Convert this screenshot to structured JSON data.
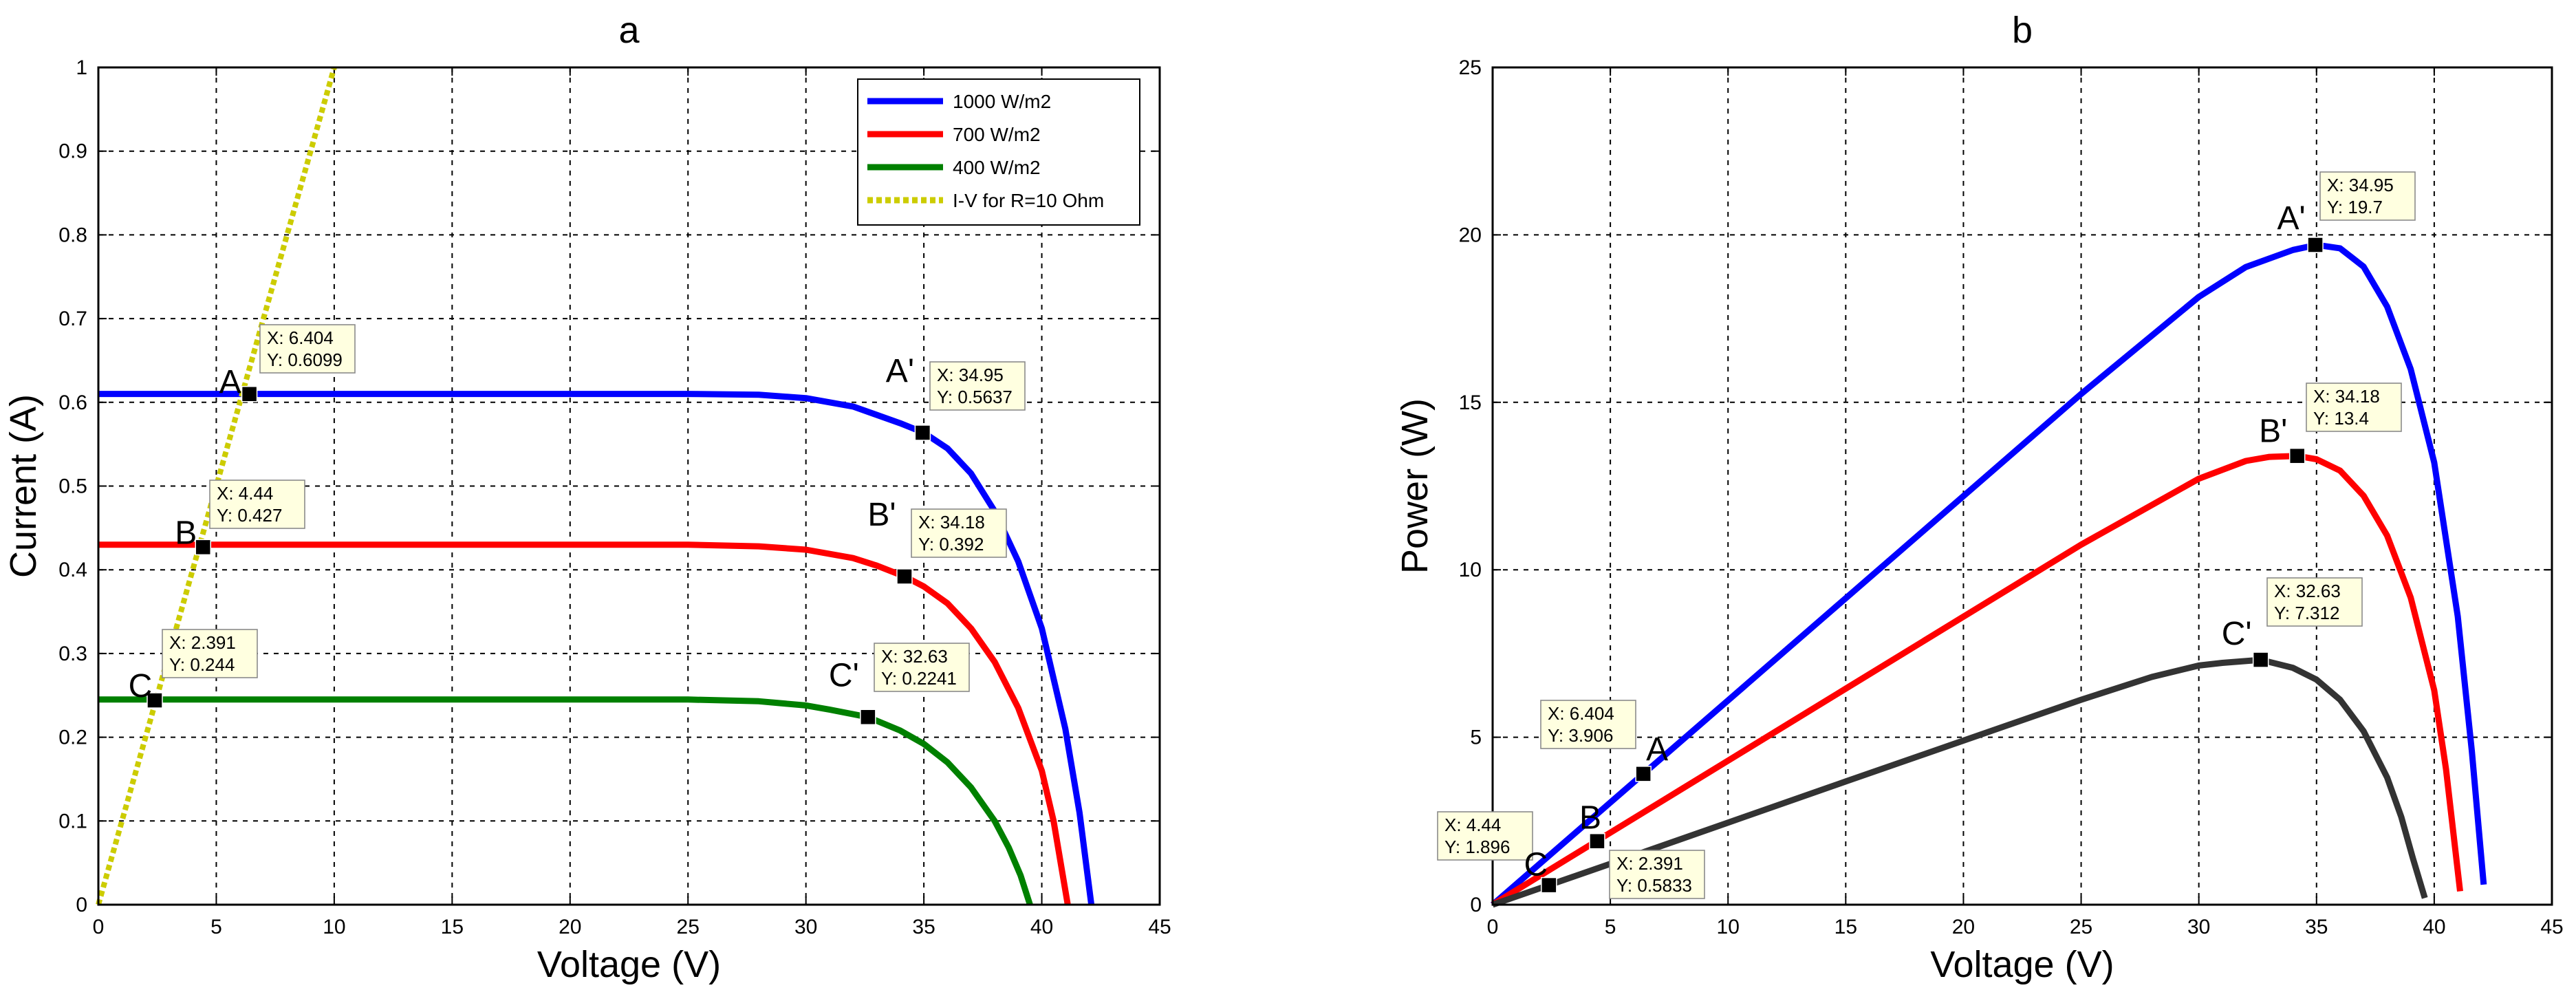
{
  "chart_data": [
    {
      "id": "a",
      "type": "line",
      "title": "a",
      "xlabel": "Voltage (V)",
      "ylabel": "Current (A)",
      "xlim": [
        0,
        45
      ],
      "ylim": [
        0,
        1
      ],
      "xticks": [
        "0",
        "5",
        "10",
        "15",
        "20",
        "25",
        "30",
        "35",
        "40",
        "45"
      ],
      "yticks": [
        "0",
        "0.1",
        "0.2",
        "0.3",
        "0.4",
        "0.5",
        "0.6",
        "0.7",
        "0.8",
        "0.9",
        "1"
      ],
      "grid": true,
      "legend_position": "top-right",
      "series": [
        {
          "name": "1000 W/m2",
          "color": "#0000ff",
          "style": "solid",
          "x": [
            0,
            5,
            10,
            15,
            20,
            25,
            28,
            30,
            32,
            34,
            35,
            36,
            37,
            38,
            39,
            40,
            41,
            41.6,
            42.1
          ],
          "y": [
            0.61,
            0.61,
            0.61,
            0.61,
            0.61,
            0.61,
            0.609,
            0.605,
            0.595,
            0.575,
            0.5637,
            0.545,
            0.515,
            0.47,
            0.41,
            0.33,
            0.21,
            0.11,
            0
          ]
        },
        {
          "name": "700 W/m2",
          "color": "#ff0000",
          "style": "solid",
          "x": [
            0,
            5,
            10,
            15,
            20,
            25,
            28,
            30,
            32,
            33,
            34.18,
            35,
            36,
            37,
            38,
            39,
            40,
            40.5,
            41.1
          ],
          "y": [
            0.43,
            0.43,
            0.43,
            0.43,
            0.43,
            0.43,
            0.428,
            0.424,
            0.414,
            0.405,
            0.392,
            0.38,
            0.36,
            0.33,
            0.29,
            0.235,
            0.16,
            0.1,
            0
          ]
        },
        {
          "name": "400 W/m2",
          "color": "#008000",
          "style": "solid",
          "x": [
            0,
            5,
            10,
            15,
            20,
            25,
            28,
            30,
            31,
            32.63,
            34,
            35,
            36,
            37,
            38,
            38.6,
            39.1,
            39.5
          ],
          "y": [
            0.245,
            0.245,
            0.245,
            0.245,
            0.245,
            0.245,
            0.243,
            0.238,
            0.233,
            0.2241,
            0.208,
            0.192,
            0.17,
            0.14,
            0.1,
            0.068,
            0.035,
            0
          ]
        },
        {
          "name": "I-V for R=10 Ohm",
          "color": "#cccc00",
          "style": "dotted",
          "x": [
            0,
            10
          ],
          "y": [
            0,
            1
          ]
        }
      ],
      "points": [
        {
          "label": "A",
          "x": 6.404,
          "y": 0.6099,
          "tip_x": "X: 6.404",
          "tip_y": "Y: 0.6099"
        },
        {
          "label": "B",
          "x": 4.44,
          "y": 0.427,
          "tip_x": "X: 4.44",
          "tip_y": "Y: 0.427"
        },
        {
          "label": "C",
          "x": 2.391,
          "y": 0.244,
          "tip_x": "X: 2.391",
          "tip_y": "Y: 0.244"
        },
        {
          "label": "A'",
          "x": 34.95,
          "y": 0.5637,
          "tip_x": "X: 34.95",
          "tip_y": "Y: 0.5637"
        },
        {
          "label": "B'",
          "x": 34.18,
          "y": 0.392,
          "tip_x": "X: 34.18",
          "tip_y": "Y: 0.392"
        },
        {
          "label": "C'",
          "x": 32.63,
          "y": 0.2241,
          "tip_x": "X: 32.63",
          "tip_y": "Y: 0.2241"
        }
      ]
    },
    {
      "id": "b",
      "type": "line",
      "title": "b",
      "xlabel": "Voltage (V)",
      "ylabel": "Power (W)",
      "xlim": [
        0,
        45
      ],
      "ylim": [
        0,
        25
      ],
      "xticks": [
        "0",
        "5",
        "10",
        "15",
        "20",
        "25",
        "30",
        "35",
        "40",
        "45"
      ],
      "yticks": [
        "0",
        "5",
        "10",
        "15",
        "20",
        "25"
      ],
      "grid": true,
      "series": [
        {
          "name": "1000 W/m2",
          "color": "#0000ff",
          "style": "solid",
          "x": [
            0,
            5,
            10,
            15,
            20,
            25,
            30,
            32,
            34,
            35,
            36,
            37,
            38,
            39,
            40,
            41,
            41.6,
            42.1
          ],
          "y": [
            0,
            3.05,
            6.1,
            9.15,
            12.2,
            15.25,
            18.15,
            19.04,
            19.55,
            19.7,
            19.6,
            19.05,
            17.86,
            15.99,
            13.2,
            8.61,
            4.58,
            0.6
          ]
        },
        {
          "name": "700 W/m2",
          "color": "#ff0000",
          "style": "solid",
          "x": [
            0,
            5,
            10,
            15,
            20,
            25,
            30,
            32,
            33,
            34.18,
            35,
            36,
            37,
            38,
            39,
            40,
            40.5,
            41.1
          ],
          "y": [
            0,
            2.15,
            4.3,
            6.45,
            8.6,
            10.75,
            12.72,
            13.25,
            13.37,
            13.4,
            13.3,
            12.96,
            12.21,
            11.02,
            9.17,
            6.4,
            4.05,
            0.4
          ]
        },
        {
          "name": "400 W/m2",
          "color": "#333333",
          "style": "solid",
          "x": [
            0,
            5,
            10,
            15,
            20,
            25,
            28,
            30,
            31,
            32.63,
            34,
            35,
            36,
            37,
            38,
            38.6,
            39.1,
            39.6
          ],
          "y": [
            0,
            1.22,
            2.45,
            3.68,
            4.9,
            6.12,
            6.8,
            7.14,
            7.22,
            7.312,
            7.07,
            6.72,
            6.12,
            5.18,
            3.8,
            2.62,
            1.37,
            0.2
          ]
        }
      ],
      "points": [
        {
          "label": "A",
          "x": 6.404,
          "y": 3.906,
          "tip_x": "X: 6.404",
          "tip_y": "Y: 3.906"
        },
        {
          "label": "B",
          "x": 4.44,
          "y": 1.896,
          "tip_x": "X: 4.44",
          "tip_y": "Y: 1.896"
        },
        {
          "label": "C",
          "x": 2.391,
          "y": 0.5833,
          "tip_x": "X: 2.391",
          "tip_y": "Y: 0.5833"
        },
        {
          "label": "A'",
          "x": 34.95,
          "y": 19.7,
          "tip_x": "X: 34.95",
          "tip_y": "Y: 19.7"
        },
        {
          "label": "B'",
          "x": 34.18,
          "y": 13.4,
          "tip_x": "X: 34.18",
          "tip_y": "Y: 13.4"
        },
        {
          "label": "C'",
          "x": 32.63,
          "y": 7.312,
          "tip_x": "X: 32.63",
          "tip_y": "Y: 7.312"
        }
      ]
    }
  ]
}
